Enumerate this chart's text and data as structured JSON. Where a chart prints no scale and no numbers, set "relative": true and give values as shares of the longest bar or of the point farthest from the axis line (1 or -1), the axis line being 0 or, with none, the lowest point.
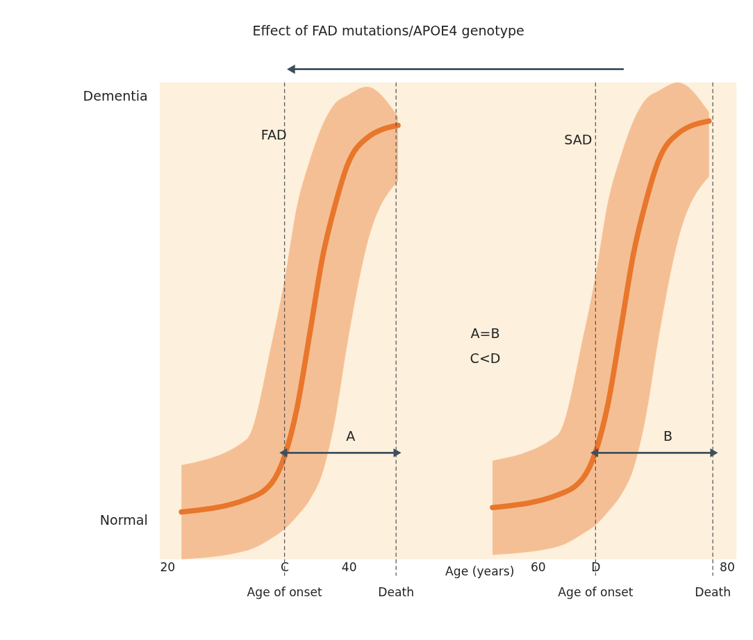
{
  "chart_data": {
    "type": "line",
    "title": "Effect of FAD mutations/APOE4 genotype",
    "xlabel": "Age (years)",
    "xlim": [
      20,
      81
    ],
    "xticks": [
      20,
      {
        "value": 33.2,
        "label": "C"
      },
      40,
      60,
      {
        "value": 66.1,
        "label": "D"
      },
      80
    ],
    "relative": true,
    "grid": false,
    "line_style": "solid",
    "series": [
      {
        "color": "#e8762b",
        "x": [
          22.3,
          29.2,
          31.9,
          33.2,
          34.5,
          35.9,
          37.2,
          38.5,
          39.9,
          41.9,
          45.2
        ],
        "values": [
          0.108,
          0.137,
          0.176,
          0.235,
          0.343,
          0.519,
          0.687,
          0.804,
          0.902,
          0.961,
          0.99
        ],
        "lower": [
          0,
          0.02,
          0.049,
          0.069,
          0.098,
          0.137,
          0.196,
          0.313,
          0.499,
          0.716,
          0.863
        ],
        "upper": [
          0.215,
          0.274,
          0.499,
          0.638,
          0.804,
          0.912,
          0.99,
          1.039,
          1.059,
          1.078,
          1.01
        ]
      },
      {
        "color": "#e8762b",
        "x": [
          55.2,
          62.1,
          64.8,
          66.1,
          67.4,
          68.8,
          70.1,
          71.4,
          72.8,
          74.8,
          78.1
        ],
        "values": [
          0.118,
          0.147,
          0.186,
          0.245,
          0.353,
          0.529,
          0.696,
          0.814,
          0.912,
          0.971,
          1.0
        ],
        "lower": [
          0.01,
          0.029,
          0.059,
          0.078,
          0.108,
          0.147,
          0.206,
          0.323,
          0.509,
          0.726,
          0.873
        ],
        "upper": [
          0.225,
          0.284,
          0.509,
          0.647,
          0.814,
          0.922,
          1.0,
          1.049,
          1.069,
          1.088,
          1.02
        ]
      },
      {
        "color": "#3d4f5c",
        "marker": "triangle",
        "x": [
          33.2,
          45.0
        ],
        "values": [
          0.243,
          0.243
        ]
      },
      {
        "color": "#3d4f5c",
        "marker": "triangle",
        "x": [
          66.1,
          78.5
        ],
        "values": [
          0.243,
          0.243
        ]
      }
    ],
    "ref_lines": [
      {
        "axis": "x",
        "value": 33.2,
        "label": "Age of onset",
        "color": "#555555",
        "line_style": "dashed"
      },
      {
        "axis": "x",
        "value": 45.0,
        "label": "Death",
        "color": "#555555",
        "line_style": "dashed"
      },
      {
        "axis": "x",
        "value": 66.1,
        "label": "Age of onset",
        "color": "#555555",
        "line_style": "dashed"
      },
      {
        "axis": "x",
        "value": 78.5,
        "label": "Death",
        "color": "#555555",
        "line_style": "dashed"
      }
    ],
    "annotations": [
      "Dementia",
      "Normal",
      "FAD",
      "SAD",
      "A=B",
      "C<D",
      "A",
      "B"
    ]
  }
}
